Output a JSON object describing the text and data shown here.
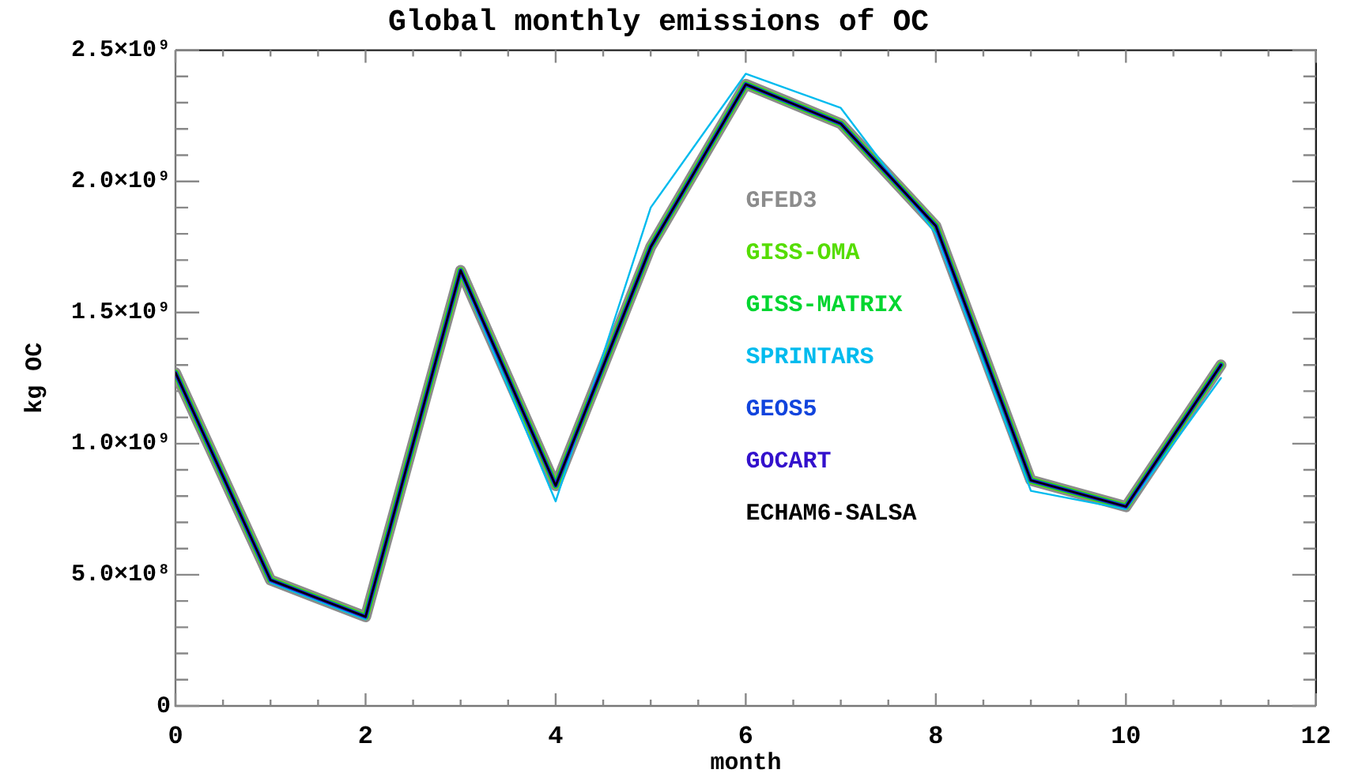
{
  "chart_data": {
    "type": "line",
    "title": "Global monthly emissions of OC",
    "xlabel": "month",
    "ylabel": "kg OC",
    "legend": "center",
    "marker": "none",
    "x": [
      0,
      1,
      2,
      3,
      4,
      5,
      6,
      7,
      8,
      9,
      10,
      11
    ],
    "xlim": [
      0,
      12
    ],
    "xticks": [
      0,
      {
        "value": 0.5,
        "label": null
      },
      {
        "value": 1,
        "label": null
      },
      {
        "value": 1.5,
        "label": null
      },
      2,
      {
        "value": 2.5,
        "label": null
      },
      {
        "value": 3,
        "label": null
      },
      {
        "value": 3.5,
        "label": null
      },
      4,
      {
        "value": 4.5,
        "label": null
      },
      {
        "value": 5,
        "label": null
      },
      {
        "value": 5.5,
        "label": null
      },
      6,
      {
        "value": 6.5,
        "label": null
      },
      {
        "value": 7,
        "label": null
      },
      {
        "value": 7.5,
        "label": null
      },
      8,
      {
        "value": 8.5,
        "label": null
      },
      {
        "value": 9,
        "label": null
      },
      {
        "value": 9.5,
        "label": null
      },
      10,
      {
        "value": 10.5,
        "label": null
      },
      {
        "value": 11,
        "label": null
      },
      {
        "value": 11.5,
        "label": null
      },
      12
    ],
    "ylim": [
      0,
      2500000000
    ],
    "yticks": [
      0,
      {
        "value": 100000000,
        "label": null
      },
      {
        "value": 200000000,
        "label": null
      },
      {
        "value": 300000000,
        "label": null
      },
      {
        "value": 400000000,
        "label": null
      },
      {
        "value": 500000000,
        "label": "5.0×10⁸"
      },
      {
        "value": 600000000,
        "label": null
      },
      {
        "value": 700000000,
        "label": null
      },
      {
        "value": 800000000,
        "label": null
      },
      {
        "value": 900000000,
        "label": null
      },
      {
        "value": 1000000000,
        "label": "1.0×10⁹"
      },
      {
        "value": 1100000000,
        "label": null
      },
      {
        "value": 1200000000,
        "label": null
      },
      {
        "value": 1300000000,
        "label": null
      },
      {
        "value": 1400000000,
        "label": null
      },
      {
        "value": 1500000000,
        "label": "1.5×10⁹"
      },
      {
        "value": 1600000000,
        "label": null
      },
      {
        "value": 1700000000,
        "label": null
      },
      {
        "value": 1800000000,
        "label": null
      },
      {
        "value": 1900000000,
        "label": null
      },
      {
        "value": 2000000000,
        "label": "2.0×10⁹"
      },
      {
        "value": 2100000000,
        "label": null
      },
      {
        "value": 2200000000,
        "label": null
      },
      {
        "value": 2300000000,
        "label": null
      },
      {
        "value": 2400000000,
        "label": null
      },
      {
        "value": 2500000000,
        "label": "2.5×10⁹"
      }
    ],
    "series": [
      {
        "name": "GFED3",
        "color": "#8c8c8c",
        "values": [
          1270000000,
          480000000,
          340000000,
          1660000000,
          840000000,
          1750000000,
          2370000000,
          2220000000,
          1830000000,
          860000000,
          760000000,
          1300000000
        ]
      },
      {
        "name": "GISS-OMA",
        "color": "#55dd00",
        "values": [
          1270000000,
          480000000,
          340000000,
          1660000000,
          840000000,
          1750000000,
          2370000000,
          2220000000,
          1830000000,
          860000000,
          760000000,
          1300000000
        ]
      },
      {
        "name": "GISS-MATRIX",
        "color": "#00d630",
        "values": [
          1270000000,
          480000000,
          340000000,
          1660000000,
          840000000,
          1750000000,
          2370000000,
          2220000000,
          1830000000,
          860000000,
          760000000,
          1300000000
        ]
      },
      {
        "name": "SPRINTARS",
        "color": "#00bbee",
        "values": [
          1260000000,
          470000000,
          330000000,
          1650000000,
          780000000,
          1900000000,
          2410000000,
          2280000000,
          1800000000,
          820000000,
          750000000,
          1250000000
        ]
      },
      {
        "name": "GEOS5",
        "color": "#1144dd",
        "values": [
          1270000000,
          480000000,
          340000000,
          1660000000,
          840000000,
          1750000000,
          2370000000,
          2220000000,
          1830000000,
          860000000,
          760000000,
          1300000000
        ]
      },
      {
        "name": "GOCART",
        "color": "#3311cc",
        "values": [
          1270000000,
          480000000,
          340000000,
          1660000000,
          840000000,
          1750000000,
          2370000000,
          2220000000,
          1830000000,
          860000000,
          760000000,
          1300000000
        ]
      },
      {
        "name": "ECHAM6-SALSA",
        "color": "#000000",
        "values": [
          1270000000,
          480000000,
          340000000,
          1660000000,
          840000000,
          1750000000,
          2370000000,
          2220000000,
          1830000000,
          860000000,
          760000000,
          1300000000
        ]
      }
    ]
  }
}
